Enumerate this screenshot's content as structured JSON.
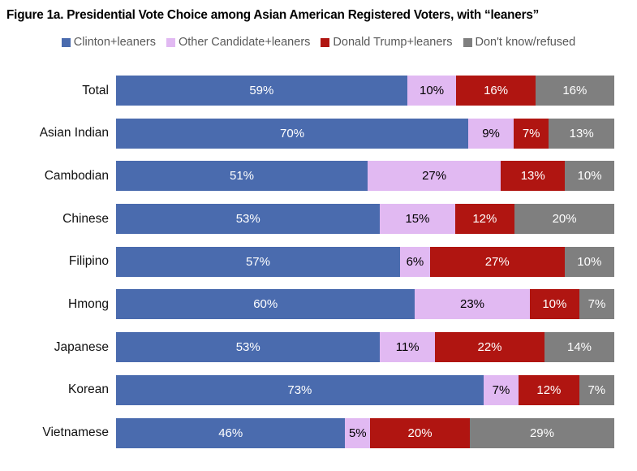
{
  "title": "Figure 1a. Presidential Vote Choice among Asian American Registered Voters, with “leaners”",
  "colors": {
    "background": "#ffffff",
    "title_text": "#000000",
    "legend_text": "#595959",
    "category_text": "#111111",
    "clinton_blue": "#4A6BAE",
    "other_lavender": "#E1B9F2",
    "trump_red": "#B01511",
    "dontknow_gray": "#7F7F7F"
  },
  "chart_data": {
    "type": "bar",
    "orientation": "horizontal",
    "stacked": true,
    "normalized_to_100_percent": true,
    "title": "Figure 1a. Presidential Vote Choice among Asian American Registered Voters, with “leaners”",
    "xlabel": "",
    "ylabel": "",
    "axis_ticks": "none",
    "grid": false,
    "legend_position": "top-center",
    "value_suffix": "%",
    "categories": [
      "Total",
      "Asian Indian",
      "Cambodian",
      "Chinese",
      "Filipino",
      "Hmong",
      "Japanese",
      "Korean",
      "Vietnamese"
    ],
    "series": [
      {
        "name": "Clinton+leaners",
        "color": "#4A6BAE",
        "label_color": "#FFFFFF",
        "values": [
          59,
          70,
          51,
          53,
          57,
          60,
          53,
          73,
          46
        ]
      },
      {
        "name": "Other Candidate+leaners",
        "color": "#E1B9F2",
        "label_color": "#000000",
        "values": [
          10,
          9,
          27,
          15,
          6,
          23,
          11,
          7,
          5
        ]
      },
      {
        "name": "Donald Trump+leaners",
        "color": "#B01511",
        "label_color": "#FFFFFF",
        "values": [
          16,
          7,
          13,
          12,
          27,
          10,
          22,
          12,
          20
        ]
      },
      {
        "name": "Don't know/refused",
        "color": "#7F7F7F",
        "label_color": "#FFFFFF",
        "values": [
          16,
          13,
          10,
          20,
          10,
          7,
          14,
          7,
          29
        ]
      }
    ]
  }
}
